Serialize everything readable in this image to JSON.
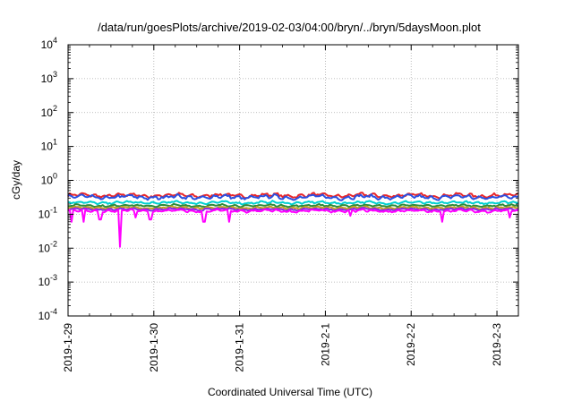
{
  "chart_data": {
    "type": "line",
    "title": "/data/run/goesPlots/archive/2019-02-03/04:00/bryn/../bryn/5daysMoon.plot",
    "xlabel": "Coordinated Universal Time (UTC)",
    "ylabel": "cGy/day",
    "yscale": "log",
    "ylim": [
      0.0001,
      10000
    ],
    "xlim": [
      "2019-01-29",
      "2019-02-03T06:00"
    ],
    "grid": true,
    "legend": "none",
    "x_ticks": [
      "2019-1-29",
      "2019-1-30",
      "2019-1-31",
      "2019-2-1",
      "2019-2-2",
      "2019-2-3"
    ],
    "y_ticks": [
      {
        "base": "10",
        "exp": "-4"
      },
      {
        "base": "10",
        "exp": "-3"
      },
      {
        "base": "10",
        "exp": "-2"
      },
      {
        "base": "10",
        "exp": "-1"
      },
      {
        "base": "10",
        "exp": "0"
      },
      {
        "base": "10",
        "exp": "1"
      },
      {
        "base": "10",
        "exp": "2"
      },
      {
        "base": "10",
        "exp": "3"
      },
      {
        "base": "10",
        "exp": "4"
      }
    ],
    "series": [
      {
        "color": "#e8262a",
        "level": 0.36,
        "jitter": 0.18,
        "dips": []
      },
      {
        "color": "#2b4fe0",
        "level": 0.32,
        "jitter": 0.2,
        "dips": []
      },
      {
        "color": "#00d0d0",
        "level": 0.22,
        "jitter": 0.12,
        "dips": []
      },
      {
        "color": "#2e8b3a",
        "level": 0.18,
        "jitter": 0.1,
        "dips": []
      },
      {
        "color": "#c0a020",
        "level": 0.155,
        "jitter": 0.1,
        "dips": []
      },
      {
        "color": "#8a2be2",
        "level": 0.14,
        "jitter": 0.1,
        "dips": []
      },
      {
        "color": "#ff00ff",
        "level": 0.125,
        "jitter": 0.12,
        "dips": [
          {
            "x": "2019-01-29T01:00",
            "y": 0.06
          },
          {
            "x": "2019-01-29T04:30",
            "y": 0.06
          },
          {
            "x": "2019-01-29T09:00",
            "y": 0.07
          },
          {
            "x": "2019-01-29T14:30",
            "y": 0.06
          },
          {
            "x": "2019-01-29T19:00",
            "y": 0.08
          },
          {
            "x": "2019-01-29T23:00",
            "y": 0.07
          },
          {
            "x": "2019-01-29T14:30",
            "y": 0.011
          },
          {
            "x": "2019-01-30T14:00",
            "y": 0.06
          },
          {
            "x": "2019-01-30T21:00",
            "y": 0.06
          },
          {
            "x": "2019-02-01T07:00",
            "y": 0.09
          },
          {
            "x": "2019-02-02T08:30",
            "y": 0.06
          },
          {
            "x": "2019-02-03T03:30",
            "y": 0.08
          }
        ]
      }
    ]
  }
}
